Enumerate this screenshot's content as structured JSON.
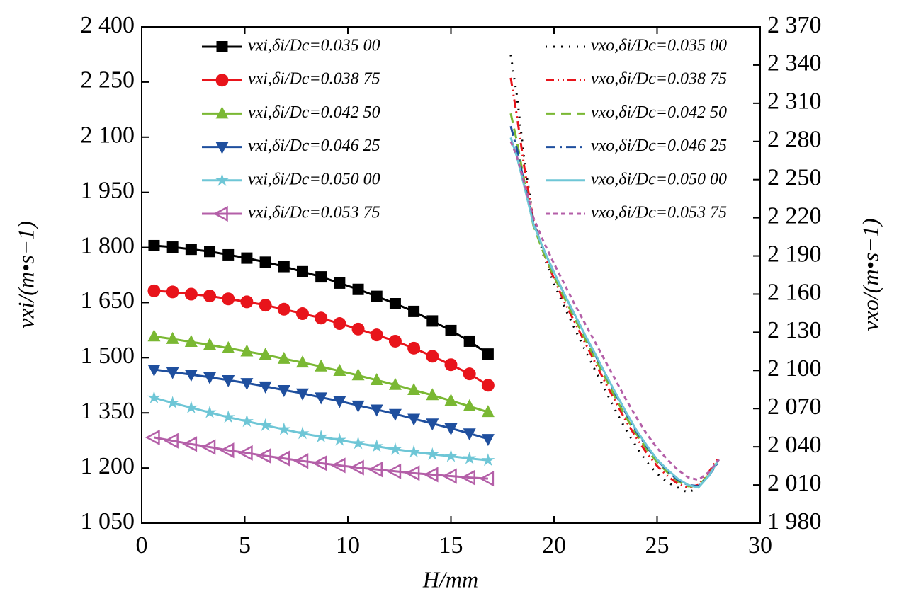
{
  "chart_data": {
    "type": "line",
    "xlabel": "H/mm",
    "ylabel": "vxi/(m•s−1)",
    "y2label": "vxo/(m•s−1)",
    "xlim": [
      0,
      30
    ],
    "xticks": [
      0,
      5,
      10,
      15,
      20,
      25,
      30
    ],
    "ylim": [
      1050,
      2400
    ],
    "yticks": [
      {
        "value": 1050,
        "label": "1 050"
      },
      {
        "value": 1200,
        "label": "1 200"
      },
      {
        "value": 1350,
        "label": "1 350"
      },
      {
        "value": 1500,
        "label": "1 500"
      },
      {
        "value": 1650,
        "label": "1 650"
      },
      {
        "value": 1800,
        "label": "1 800"
      },
      {
        "value": 1950,
        "label": "1 950"
      },
      {
        "value": 2100,
        "label": "2 100"
      },
      {
        "value": 2250,
        "label": "2 250"
      },
      {
        "value": 2400,
        "label": "2 400"
      }
    ],
    "y2lim": [
      1980,
      2370
    ],
    "y2ticks": [
      {
        "value": 1980,
        "label": "1 980"
      },
      {
        "value": 2010,
        "label": "2 010"
      },
      {
        "value": 2040,
        "label": "2 040"
      },
      {
        "value": 2070,
        "label": "2 070"
      },
      {
        "value": 2100,
        "label": "2 100"
      },
      {
        "value": 2130,
        "label": "2 130"
      },
      {
        "value": 2160,
        "label": "2 160"
      },
      {
        "value": 2190,
        "label": "2 190"
      },
      {
        "value": 2220,
        "label": "2 220"
      },
      {
        "value": 2250,
        "label": "2 250"
      },
      {
        "value": 2280,
        "label": "2 280"
      },
      {
        "value": 2310,
        "label": "2 310"
      },
      {
        "value": 2340,
        "label": "2 340"
      },
      {
        "value": 2370,
        "label": "2 370"
      }
    ],
    "series": [
      {
        "name": "vxi,δi/Dc=0.035 00",
        "color": "#000000",
        "marker": "square",
        "linestyle": "solid",
        "x": [
          0.6,
          1.5,
          2.4,
          3.3,
          4.2,
          5.1,
          6.0,
          6.9,
          7.8,
          8.7,
          9.6,
          10.5,
          11.4,
          12.3,
          13.2,
          14.1,
          15.0,
          15.9,
          16.8
        ],
        "values": [
          1805,
          1801,
          1795,
          1789,
          1780,
          1771,
          1760,
          1748,
          1734,
          1720,
          1703,
          1686,
          1667,
          1647,
          1626,
          1600,
          1574,
          1545,
          1510
        ]
      },
      {
        "name": "vxi,δi/Dc=0.038 75",
        "color": "#e8141b",
        "marker": "circle",
        "linestyle": "solid",
        "x": [
          0.6,
          1.5,
          2.4,
          3.3,
          4.2,
          5.1,
          6.0,
          6.9,
          7.8,
          8.7,
          9.6,
          10.5,
          11.4,
          12.3,
          13.2,
          14.1,
          15.0,
          15.9,
          16.8
        ],
        "values": [
          1682,
          1679,
          1673,
          1668,
          1660,
          1652,
          1643,
          1632,
          1620,
          1608,
          1593,
          1578,
          1562,
          1545,
          1526,
          1504,
          1481,
          1456,
          1425
        ]
      },
      {
        "name": "vxi,δi/Dc=0.042 50",
        "color": "#7ab833",
        "marker": "triangle-up",
        "linestyle": "solid",
        "x": [
          0.6,
          1.5,
          2.4,
          3.3,
          4.2,
          5.1,
          6.0,
          6.9,
          7.8,
          8.7,
          9.6,
          10.5,
          11.4,
          12.3,
          13.2,
          14.1,
          15.0,
          15.9,
          16.8
        ],
        "values": [
          1558,
          1551,
          1543,
          1535,
          1526,
          1517,
          1508,
          1497,
          1487,
          1476,
          1464,
          1452,
          1439,
          1426,
          1412,
          1398,
          1383,
          1368,
          1352
        ]
      },
      {
        "name": "vxi,δi/Dc=0.046 25",
        "color": "#1f4f9e",
        "marker": "triangle-down",
        "linestyle": "solid",
        "x": [
          0.6,
          1.5,
          2.4,
          3.3,
          4.2,
          5.1,
          6.0,
          6.9,
          7.8,
          8.7,
          9.6,
          10.5,
          11.4,
          12.3,
          13.2,
          14.1,
          15.0,
          15.9,
          16.8
        ],
        "values": [
          1468,
          1461,
          1454,
          1447,
          1439,
          1431,
          1422,
          1412,
          1403,
          1392,
          1382,
          1370,
          1359,
          1347,
          1334,
          1321,
          1308,
          1294,
          1279
        ]
      },
      {
        "name": "vxi,δi/Dc=0.050 00",
        "color": "#6ec6d6",
        "marker": "star",
        "linestyle": "solid",
        "x": [
          0.6,
          1.5,
          2.4,
          3.3,
          4.2,
          5.1,
          6.0,
          6.9,
          7.8,
          8.7,
          9.6,
          10.5,
          11.4,
          12.3,
          13.2,
          14.1,
          15.0,
          15.9,
          16.8
        ],
        "values": [
          1391,
          1377,
          1364,
          1351,
          1338,
          1327,
          1316,
          1305,
          1294,
          1285,
          1276,
          1267,
          1259,
          1251,
          1244,
          1237,
          1232,
          1226,
          1221
        ]
      },
      {
        "name": "vxi,δi/Dc=0.053 75",
        "color": "#b45fa8",
        "marker": "triangle-left",
        "linestyle": "solid",
        "x": [
          0.6,
          1.5,
          2.4,
          3.3,
          4.2,
          5.1,
          6.0,
          6.9,
          7.8,
          8.7,
          9.6,
          10.5,
          11.4,
          12.3,
          13.2,
          14.1,
          15.0,
          15.9,
          16.8
        ],
        "values": [
          1283,
          1274,
          1265,
          1257,
          1248,
          1241,
          1233,
          1226,
          1219,
          1213,
          1207,
          1201,
          1196,
          1191,
          1186,
          1182,
          1178,
          1174,
          1171
        ]
      },
      {
        "name": "vxo,δi/Dc=0.035 00",
        "color": "#000000",
        "linestyle": "dotted",
        "axis": "y2",
        "x": [
          17.9,
          18.2,
          18.6,
          19,
          19.5,
          20,
          20.5,
          21,
          21.5,
          22,
          22.5,
          23,
          23.5,
          24,
          24.5,
          25,
          25.5,
          26,
          26.5,
          27,
          27.5,
          28
        ],
        "values": [
          2348,
          2316,
          2260,
          2220,
          2190,
          2168,
          2150,
          2133,
          2116,
          2100,
          2084,
          2068,
          2053,
          2040,
          2028,
          2019,
          2012,
          2008,
          2004,
          2008,
          2018,
          2030
        ]
      },
      {
        "name": "vxo,δi/Dc=0.038 75",
        "color": "#e8141b",
        "linestyle": "dashdotdot",
        "axis": "y2",
        "x": [
          17.9,
          18.2,
          18.6,
          19,
          19.5,
          20,
          20.5,
          21,
          21.5,
          22,
          22.5,
          23,
          23.5,
          24,
          24.5,
          25,
          25.5,
          26,
          26.5,
          27,
          27.5,
          28
        ],
        "values": [
          2330,
          2300,
          2255,
          2218,
          2192,
          2172,
          2154,
          2138,
          2122,
          2106,
          2090,
          2075,
          2060,
          2047,
          2035,
          2025,
          2017,
          2011,
          2008,
          2010,
          2020,
          2032
        ]
      },
      {
        "name": "vxo,δi/Dc=0.042 50",
        "color": "#7ab833",
        "linestyle": "dashed",
        "axis": "y2",
        "x": [
          17.9,
          18.2,
          18.6,
          19,
          19.5,
          20,
          20.5,
          21,
          21.5,
          22,
          22.5,
          23,
          23.5,
          24,
          24.5,
          25,
          25.5,
          26,
          26.5,
          27,
          27.5,
          28
        ],
        "values": [
          2302,
          2280,
          2245,
          2214,
          2192,
          2174,
          2157,
          2141,
          2125,
          2109,
          2094,
          2078,
          2063,
          2050,
          2038,
          2028,
          2020,
          2013,
          2009,
          2009,
          2018,
          2030
        ]
      },
      {
        "name": "vxo,δi/Dc=0.046 25",
        "color": "#1f4f9e",
        "linestyle": "dashdot",
        "axis": "y2",
        "x": [
          17.9,
          18.2,
          18.6,
          19,
          19.5,
          20,
          20.5,
          21,
          21.5,
          22,
          22.5,
          23,
          23.5,
          24,
          24.5,
          25,
          25.5,
          26,
          26.5,
          27,
          27.5,
          28
        ],
        "values": [
          2292,
          2274,
          2244,
          2216,
          2195,
          2177,
          2160,
          2144,
          2128,
          2112,
          2097,
          2081,
          2066,
          2052,
          2040,
          2030,
          2021,
          2014,
          2010,
          2009,
          2017,
          2029
        ]
      },
      {
        "name": "vxo,δi/Dc=0.050 00",
        "color": "#6ec6d6",
        "linestyle": "solid",
        "axis": "y2",
        "x": [
          17.9,
          18.2,
          18.6,
          19,
          19.5,
          20,
          20.5,
          21,
          21.5,
          22,
          22.5,
          23,
          23.5,
          24,
          24.5,
          25,
          25.5,
          26,
          26.5,
          27,
          27.5,
          28
        ],
        "values": [
          2283,
          2268,
          2242,
          2215,
          2195,
          2177,
          2160,
          2144,
          2128,
          2113,
          2097,
          2082,
          2067,
          2053,
          2041,
          2030,
          2022,
          2015,
          2010,
          2008,
          2017,
          2030
        ]
      },
      {
        "name": "vxo,δi/Dc=0.053 75",
        "color": "#b45fa8",
        "linestyle": "shortdash",
        "axis": "y2",
        "x": [
          17.9,
          18.2,
          18.6,
          19,
          19.5,
          20,
          20.5,
          21,
          21.5,
          22,
          22.5,
          23,
          23.5,
          24,
          24.5,
          25,
          25.5,
          26,
          26.5,
          27,
          27.5,
          28
        ],
        "values": [
          2280,
          2268,
          2245,
          2220,
          2201,
          2184,
          2168,
          2152,
          2137,
          2122,
          2107,
          2092,
          2077,
          2063,
          2050,
          2039,
          2030,
          2022,
          2016,
          2014,
          2020,
          2030
        ]
      }
    ]
  }
}
